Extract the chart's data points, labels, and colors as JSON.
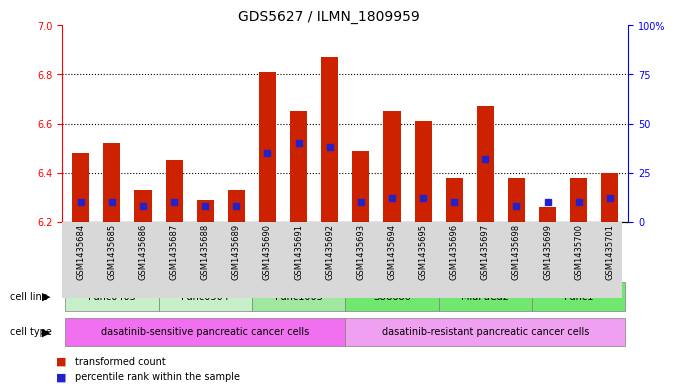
{
  "title": "GDS5627 / ILMN_1809959",
  "samples": [
    "GSM1435684",
    "GSM1435685",
    "GSM1435686",
    "GSM1435687",
    "GSM1435688",
    "GSM1435689",
    "GSM1435690",
    "GSM1435691",
    "GSM1435692",
    "GSM1435693",
    "GSM1435694",
    "GSM1435695",
    "GSM1435696",
    "GSM1435697",
    "GSM1435698",
    "GSM1435699",
    "GSM1435700",
    "GSM1435701"
  ],
  "transformed_count": [
    6.48,
    6.52,
    6.33,
    6.45,
    6.29,
    6.33,
    6.81,
    6.65,
    6.87,
    6.49,
    6.65,
    6.61,
    6.38,
    6.67,
    6.38,
    6.26,
    6.38,
    6.4
  ],
  "percentile_rank": [
    10,
    10,
    8,
    10,
    8,
    8,
    35,
    40,
    38,
    10,
    12,
    12,
    10,
    32,
    8,
    10,
    10,
    12
  ],
  "ymin": 6.2,
  "ymax": 7.0,
  "yticks": [
    6.2,
    6.4,
    6.6,
    6.8,
    7.0
  ],
  "right_yticks": [
    0,
    25,
    50,
    75,
    100
  ],
  "right_ytick_labels": [
    "0",
    "25",
    "50",
    "75",
    "100%"
  ],
  "bar_color": "#cc2200",
  "blue_color": "#2222cc",
  "cell_lines": [
    {
      "name": "Panc0403",
      "start": 0,
      "end": 2,
      "color": "#c8f0c8"
    },
    {
      "name": "Panc0504",
      "start": 3,
      "end": 5,
      "color": "#c8f0c8"
    },
    {
      "name": "Panc1005",
      "start": 6,
      "end": 8,
      "color": "#a0e8a0"
    },
    {
      "name": "SU8686",
      "start": 9,
      "end": 11,
      "color": "#70e870"
    },
    {
      "name": "MiaPaCa2",
      "start": 12,
      "end": 14,
      "color": "#70e870"
    },
    {
      "name": "Panc1",
      "start": 15,
      "end": 17,
      "color": "#70e870"
    }
  ],
  "cell_types": [
    {
      "name": "dasatinib-sensitive pancreatic cancer cells",
      "start": 0,
      "end": 8,
      "color": "#f070f0"
    },
    {
      "name": "dasatinib-resistant pancreatic cancer cells",
      "start": 9,
      "end": 17,
      "color": "#f0a0f0"
    }
  ],
  "legend_items": [
    {
      "label": "transformed count",
      "color": "#cc2200",
      "marker": "s"
    },
    {
      "label": "percentile rank within the sample",
      "color": "#2222cc",
      "marker": "s"
    }
  ]
}
